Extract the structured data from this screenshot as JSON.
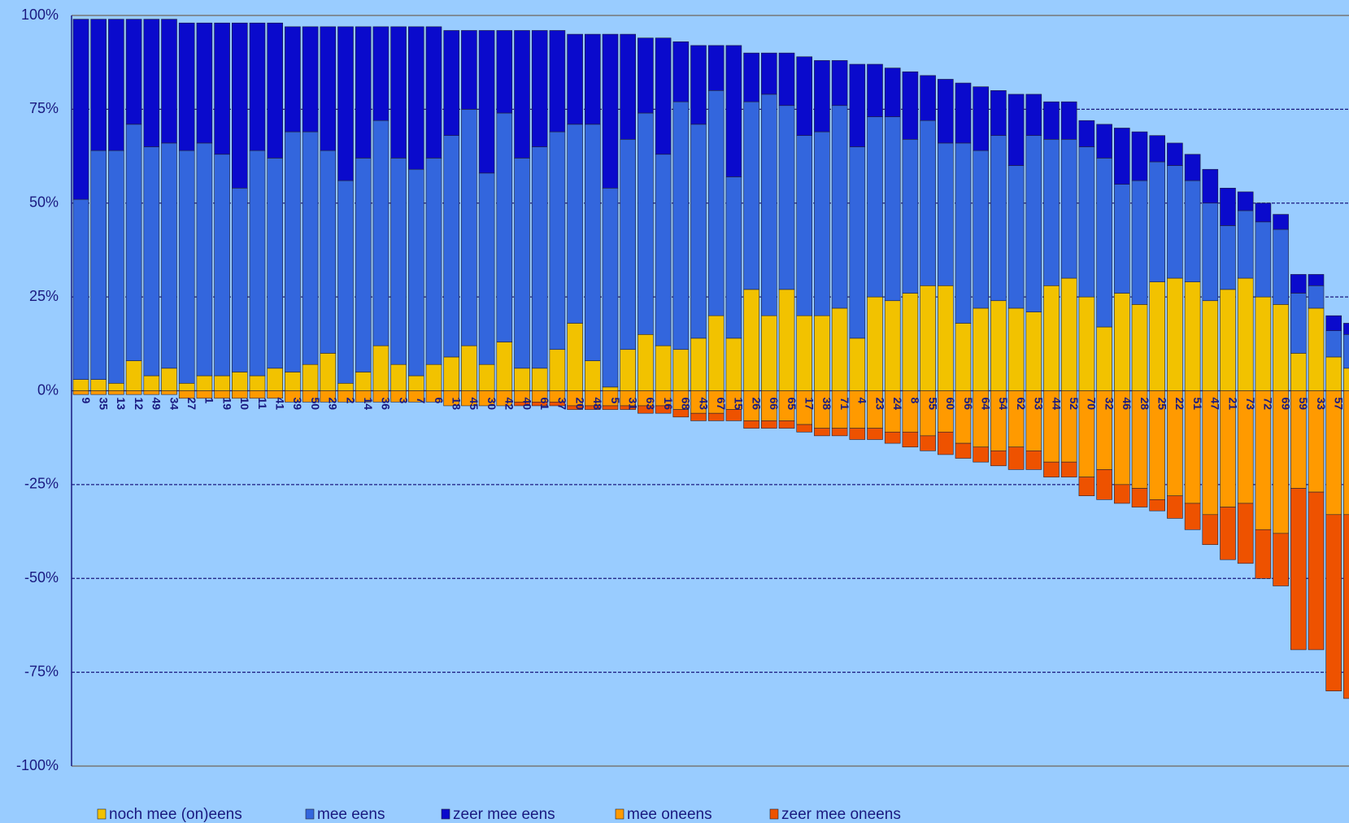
{
  "chart_data": {
    "type": "stacked_bar",
    "categories": [
      "9",
      "35",
      "13",
      "12",
      "49",
      "34",
      "27",
      "1",
      "19",
      "10",
      "11",
      "41",
      "39",
      "50",
      "29",
      "2",
      "14",
      "36",
      "3",
      "7",
      "6",
      "18",
      "45",
      "30",
      "42",
      "40",
      "61",
      "37",
      "20",
      "48",
      "5",
      "31",
      "63",
      "16",
      "68",
      "43",
      "67",
      "15",
      "26",
      "66",
      "65",
      "17",
      "38",
      "71",
      "4",
      "23",
      "24",
      "8",
      "55",
      "60",
      "56",
      "64",
      "54",
      "62",
      "53",
      "44",
      "52",
      "70",
      "32",
      "46",
      "28",
      "25",
      "22",
      "51",
      "47",
      "21",
      "73",
      "72",
      "69",
      "59",
      "33",
      "57",
      null
    ],
    "series": [
      {
        "name": "noch mee (on)eens",
        "color": "#f2c200",
        "values": [
          3,
          3,
          2,
          8,
          4,
          6,
          2,
          4,
          4,
          5,
          4,
          6,
          5,
          7,
          10,
          2,
          5,
          12,
          7,
          4,
          7,
          9,
          12,
          7,
          13,
          6,
          6,
          11,
          18,
          8,
          1,
          11,
          15,
          12,
          11,
          14,
          20,
          14,
          27,
          20,
          27,
          20,
          20,
          22,
          14,
          25,
          24,
          26,
          28,
          28,
          18,
          22,
          24,
          22,
          21,
          28,
          30,
          25,
          17,
          26,
          23,
          29,
          30,
          29,
          24,
          27,
          30,
          25,
          23,
          10,
          22,
          9,
          6
        ]
      },
      {
        "name": "mee eens",
        "color": "#3366dd",
        "values": [
          48,
          61,
          62,
          63,
          61,
          60,
          62,
          62,
          59,
          49,
          60,
          56,
          64,
          62,
          54,
          54,
          57,
          60,
          55,
          55,
          55,
          59,
          63,
          51,
          61,
          56,
          59,
          58,
          53,
          63,
          53,
          56,
          59,
          51,
          66,
          57,
          60,
          43,
          50,
          59,
          49,
          48,
          49,
          54,
          51,
          48,
          49,
          41,
          44,
          38,
          48,
          42,
          44,
          38,
          47,
          39,
          37,
          40,
          45,
          29,
          33,
          32,
          30,
          27,
          26,
          17,
          18,
          20,
          20,
          16,
          6,
          7,
          9
        ]
      },
      {
        "name": "zeer mee eens",
        "color": "#0a0acc",
        "values": [
          48,
          35,
          35,
          28,
          34,
          33,
          34,
          32,
          35,
          44,
          34,
          36,
          28,
          28,
          33,
          41,
          35,
          25,
          35,
          38,
          35,
          28,
          21,
          38,
          22,
          34,
          31,
          27,
          24,
          24,
          41,
          28,
          20,
          31,
          16,
          21,
          12,
          35,
          13,
          11,
          14,
          21,
          19,
          12,
          22,
          14,
          13,
          18,
          12,
          17,
          16,
          17,
          12,
          19,
          11,
          10,
          10,
          7,
          9,
          15,
          13,
          7,
          6,
          7,
          9,
          10,
          5,
          5,
          4,
          5,
          3,
          4,
          3
        ]
      },
      {
        "name": "mee oneens",
        "color": "#ff9a00",
        "values": [
          -1,
          -1,
          -1,
          -1,
          -1,
          -1,
          -2,
          -2,
          -2,
          -2,
          -2,
          -2,
          -3,
          -3,
          -3,
          -3,
          -3,
          -3,
          -3,
          -3,
          -3,
          -4,
          -4,
          -4,
          -4,
          -3,
          -3,
          -3,
          -4,
          -4,
          -4,
          -4,
          -4,
          -4,
          -5,
          -6,
          -6,
          -5,
          -8,
          -8,
          -8,
          -9,
          -10,
          -10,
          -10,
          -10,
          -11,
          -11,
          -12,
          -11,
          -14,
          -15,
          -16,
          -15,
          -16,
          -19,
          -19,
          -23,
          -21,
          -25,
          -26,
          -29,
          -28,
          -30,
          -33,
          -31,
          -30,
          -37,
          -38,
          -26,
          -27,
          -33,
          -33
        ]
      },
      {
        "name": "zeer mee oneens",
        "color": "#ee5200",
        "values": [
          0,
          0,
          0,
          0,
          0,
          0,
          0,
          0,
          0,
          0,
          0,
          0,
          0,
          0,
          0,
          0,
          0,
          0,
          0,
          0,
          0,
          0,
          0,
          0,
          0,
          -1,
          -1,
          -1,
          -1,
          -1,
          -1,
          -1,
          -2,
          -2,
          -2,
          -2,
          -2,
          -3,
          -2,
          -2,
          -2,
          -2,
          -2,
          -2,
          -3,
          -3,
          -3,
          -4,
          -4,
          -6,
          -4,
          -4,
          -4,
          -6,
          -5,
          -4,
          -4,
          -5,
          -8,
          -5,
          -5,
          -3,
          -6,
          -7,
          -8,
          -14,
          -16,
          -13,
          -14,
          -43,
          -42,
          -47,
          -49
        ]
      }
    ],
    "ylim": [
      -100,
      100
    ],
    "yticks": [
      {
        "value": -100,
        "label": "-100%"
      },
      {
        "value": -75,
        "label": "-75%"
      },
      {
        "value": -50,
        "label": "-50%"
      },
      {
        "value": -25,
        "label": "-25%"
      },
      {
        "value": 0,
        "label": "0%"
      },
      {
        "value": 25,
        "label": "25%"
      },
      {
        "value": 50,
        "label": "50%"
      },
      {
        "value": 75,
        "label": "75%"
      },
      {
        "value": 100,
        "label": "100%"
      }
    ],
    "grid": true,
    "legend": "bottom"
  }
}
